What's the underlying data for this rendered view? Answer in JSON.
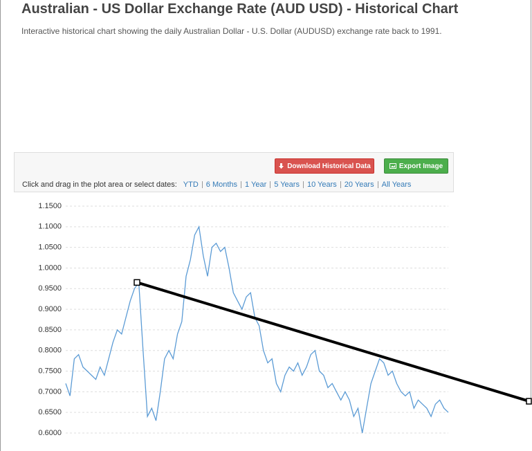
{
  "header": {
    "title": "Australian - US Dollar Exchange Rate (AUD USD) - Historical Chart",
    "subtitle": "Interactive historical chart showing the daily Australian Dollar - U.S. Dollar (AUDUSD) exchange rate back to 1991."
  },
  "toolbar": {
    "download_button": "Download Historical Data",
    "export_button": "Export Image",
    "prompt": "Click and drag in the plot area or select dates:",
    "ranges": [
      "YTD",
      "6 Months",
      "1 Year",
      "5 Years",
      "10 Years",
      "20 Years",
      "All Years"
    ]
  },
  "chart_data": {
    "type": "line",
    "color": "#5b9bd5",
    "grid": true,
    "ylim": [
      0.6,
      1.15
    ],
    "yticks": [
      {
        "value": 0.6,
        "label": "0.6000"
      },
      {
        "value": 0.65,
        "label": "0.6500"
      },
      {
        "value": 0.7,
        "label": "0.7000"
      },
      {
        "value": 0.75,
        "label": "0.7500"
      },
      {
        "value": 0.8,
        "label": "0.8000"
      },
      {
        "value": 0.85,
        "label": "0.8500"
      },
      {
        "value": 0.9,
        "label": "0.9000"
      },
      {
        "value": 0.95,
        "label": "0.9500"
      },
      {
        "value": 1.0,
        "label": "1.0000"
      },
      {
        "value": 1.05,
        "label": "1.0500"
      },
      {
        "value": 1.1,
        "label": "1.1000"
      },
      {
        "value": 1.15,
        "label": "1.1500"
      }
    ],
    "values": [
      0.72,
      0.69,
      0.78,
      0.79,
      0.76,
      0.75,
      0.74,
      0.73,
      0.76,
      0.74,
      0.78,
      0.82,
      0.85,
      0.84,
      0.88,
      0.92,
      0.95,
      0.965,
      0.8,
      0.64,
      0.66,
      0.63,
      0.7,
      0.78,
      0.8,
      0.78,
      0.84,
      0.87,
      0.98,
      1.02,
      1.08,
      1.1,
      1.03,
      0.98,
      1.05,
      1.06,
      1.04,
      1.05,
      1.0,
      0.94,
      0.92,
      0.9,
      0.93,
      0.94,
      0.88,
      0.86,
      0.8,
      0.77,
      0.78,
      0.72,
      0.7,
      0.74,
      0.76,
      0.75,
      0.77,
      0.74,
      0.76,
      0.79,
      0.8,
      0.75,
      0.74,
      0.71,
      0.72,
      0.7,
      0.68,
      0.7,
      0.68,
      0.64,
      0.66,
      0.6,
      0.66,
      0.72,
      0.75,
      0.78,
      0.77,
      0.74,
      0.75,
      0.72,
      0.7,
      0.69,
      0.7,
      0.66,
      0.68,
      0.67,
      0.66,
      0.64,
      0.67,
      0.68,
      0.66,
      0.65
    ],
    "trendline": [
      0.965,
      0.677
    ]
  }
}
